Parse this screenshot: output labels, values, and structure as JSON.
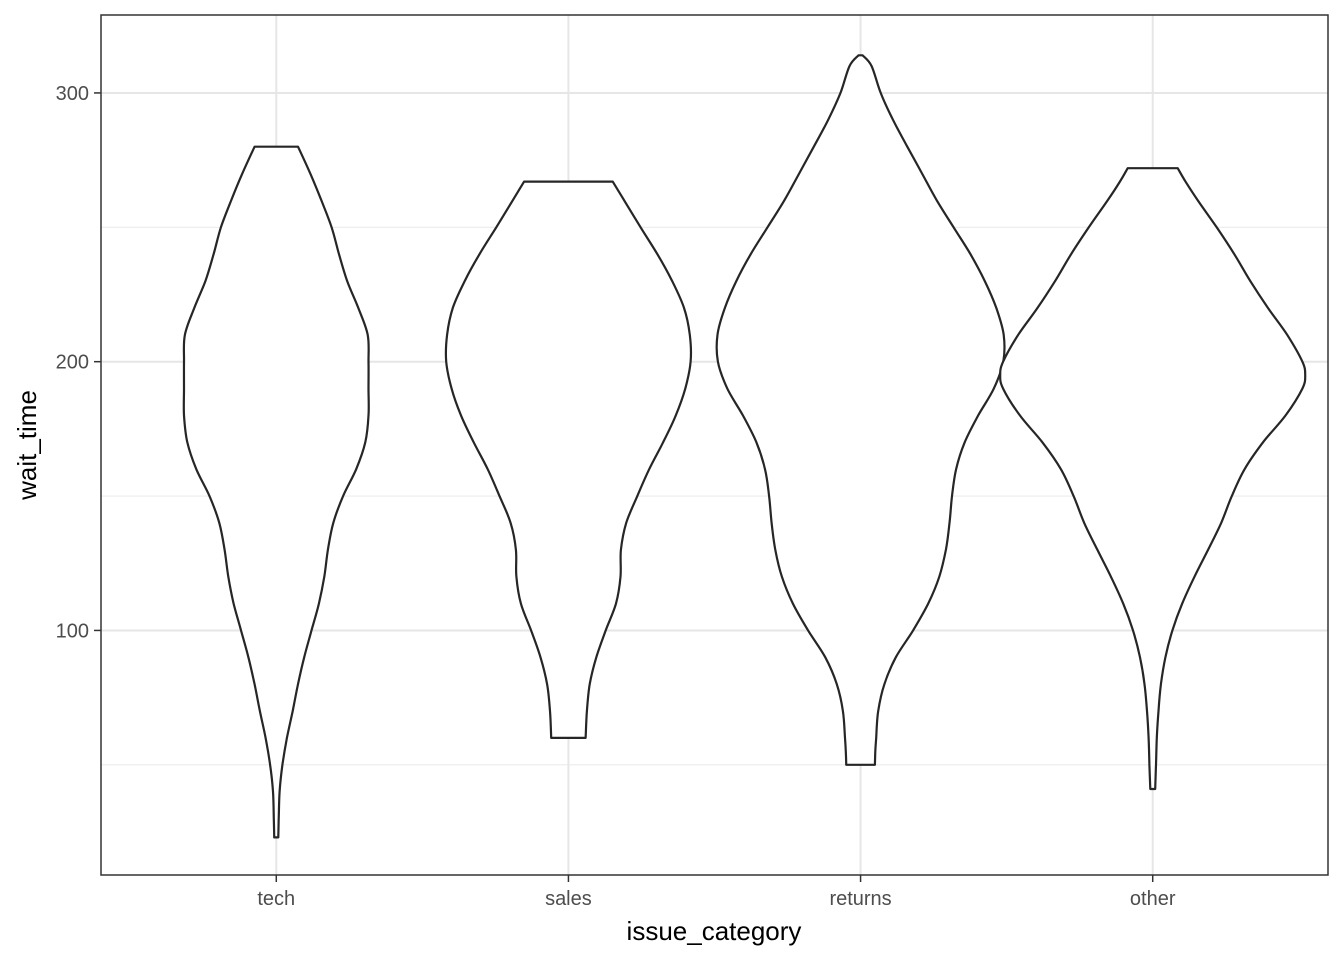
{
  "chart_data": {
    "type": "violin",
    "title": "",
    "xlabel": "issue_category",
    "ylabel": "wait_time",
    "categories": [
      "tech",
      "sales",
      "returns",
      "other"
    ],
    "ylim": [
      9,
      329
    ],
    "yticks": [
      100,
      200,
      300
    ],
    "grid": true,
    "legend": "none",
    "violins": [
      {
        "category": "tech",
        "profile": [
          [
            23,
            0.5
          ],
          [
            30,
            0.6
          ],
          [
            40,
            0.8
          ],
          [
            50,
            1.5
          ],
          [
            60,
            2.6
          ],
          [
            70,
            4.0
          ],
          [
            80,
            5.3
          ],
          [
            90,
            6.8
          ],
          [
            100,
            8.6
          ],
          [
            110,
            10.4
          ],
          [
            120,
            11.7
          ],
          [
            130,
            12.6
          ],
          [
            140,
            13.9
          ],
          [
            150,
            16.3
          ],
          [
            160,
            19.5
          ],
          [
            170,
            21.7
          ],
          [
            180,
            22.5
          ],
          [
            190,
            22.5
          ],
          [
            200,
            22.5
          ],
          [
            210,
            22.3
          ],
          [
            220,
            20.0
          ],
          [
            230,
            17.3
          ],
          [
            240,
            15.3
          ],
          [
            250,
            13.5
          ],
          [
            260,
            11.0
          ],
          [
            270,
            8.3
          ],
          [
            280,
            5.3
          ]
        ]
      },
      {
        "category": "sales",
        "profile": [
          [
            60,
            4.2
          ],
          [
            70,
            4.5
          ],
          [
            80,
            5.2
          ],
          [
            90,
            6.8
          ],
          [
            100,
            9.1
          ],
          [
            110,
            11.6
          ],
          [
            120,
            12.7
          ],
          [
            130,
            12.8
          ],
          [
            140,
            14.1
          ],
          [
            150,
            16.8
          ],
          [
            160,
            19.7
          ],
          [
            170,
            23.1
          ],
          [
            180,
            26.2
          ],
          [
            190,
            28.5
          ],
          [
            200,
            29.8
          ],
          [
            210,
            29.6
          ],
          [
            220,
            28.2
          ],
          [
            230,
            25.3
          ],
          [
            240,
            21.7
          ],
          [
            250,
            17.6
          ],
          [
            260,
            13.6
          ],
          [
            267,
            10.8
          ]
        ]
      },
      {
        "category": "returns",
        "profile": [
          [
            50,
            3.5
          ],
          [
            55,
            3.6
          ],
          [
            60,
            3.8
          ],
          [
            70,
            4.3
          ],
          [
            80,
            5.8
          ],
          [
            90,
            8.6
          ],
          [
            100,
            12.8
          ],
          [
            110,
            16.5
          ],
          [
            120,
            19.2
          ],
          [
            130,
            20.8
          ],
          [
            140,
            21.7
          ],
          [
            150,
            22.3
          ],
          [
            160,
            23.3
          ],
          [
            170,
            25.4
          ],
          [
            180,
            28.7
          ],
          [
            190,
            32.5
          ],
          [
            200,
            34.8
          ],
          [
            210,
            34.9
          ],
          [
            220,
            33.1
          ],
          [
            230,
            30.3
          ],
          [
            240,
            26.8
          ],
          [
            250,
            22.7
          ],
          [
            260,
            18.6
          ],
          [
            270,
            15.0
          ],
          [
            280,
            11.4
          ],
          [
            290,
            7.9
          ],
          [
            300,
            4.9
          ],
          [
            310,
            2.7
          ],
          [
            314,
            0.5
          ]
        ]
      },
      {
        "category": "other",
        "profile": [
          [
            41,
            0.6
          ],
          [
            50,
            0.8
          ],
          [
            60,
            1.0
          ],
          [
            70,
            1.4
          ],
          [
            80,
            2.0
          ],
          [
            90,
            3.1
          ],
          [
            100,
            4.8
          ],
          [
            110,
            7.2
          ],
          [
            120,
            10.2
          ],
          [
            130,
            13.5
          ],
          [
            140,
            16.7
          ],
          [
            150,
            19.3
          ],
          [
            160,
            22.4
          ],
          [
            170,
            26.9
          ],
          [
            180,
            32.4
          ],
          [
            190,
            36.5
          ],
          [
            195,
            37.2
          ],
          [
            200,
            36.5
          ],
          [
            210,
            32.8
          ],
          [
            220,
            28.1
          ],
          [
            230,
            23.8
          ],
          [
            240,
            19.9
          ],
          [
            250,
            15.6
          ],
          [
            260,
            11.0
          ],
          [
            267,
            8.0
          ],
          [
            272,
            6.1
          ]
        ]
      }
    ]
  }
}
